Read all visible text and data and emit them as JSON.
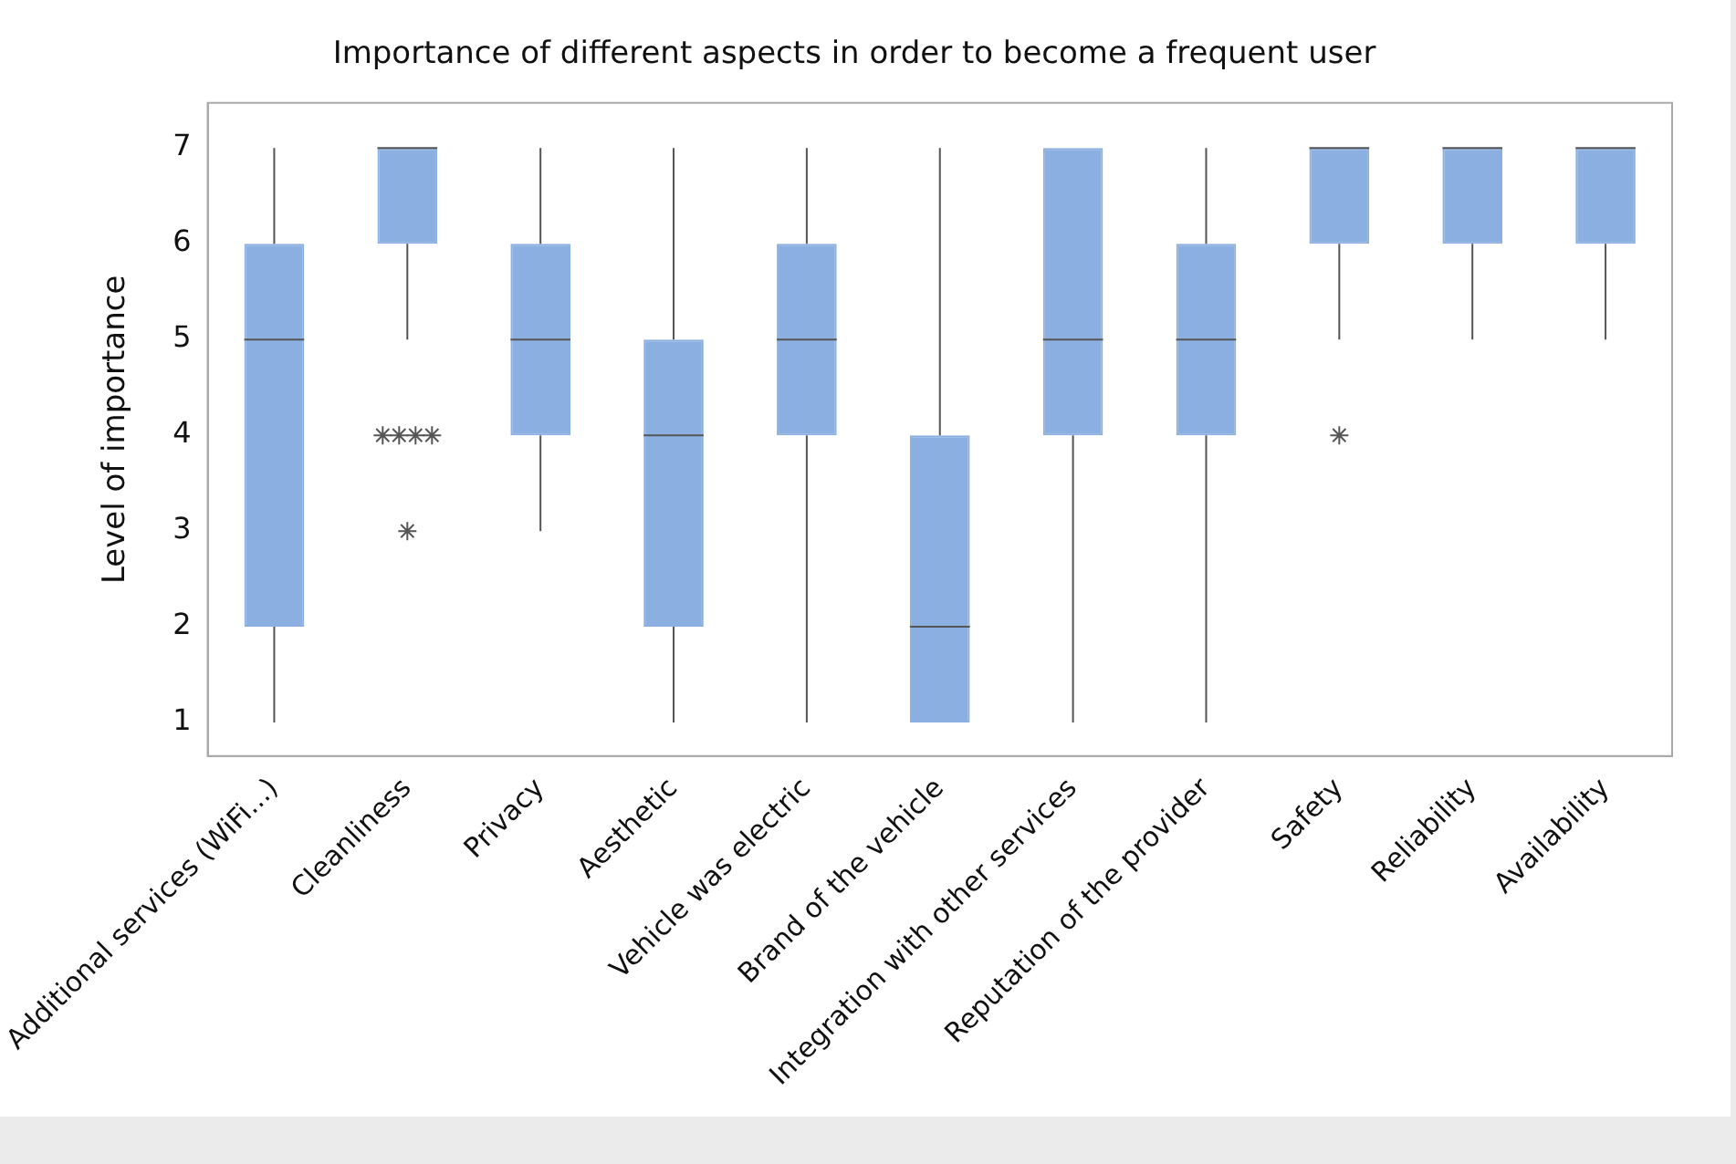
{
  "chart_data": {
    "type": "box",
    "title": "Importance of different aspects in order to become a frequent user",
    "ylabel": "Level of importance",
    "categories": [
      "Additional services (WiFi...)",
      "Cleanliness",
      "Privacy",
      "Aesthetic",
      "Vehicle was electric",
      "Brand of the vehicle",
      "Integration with other services",
      "Reputation of the provider",
      "Safety",
      "Reliability",
      "Availability"
    ],
    "boxes": [
      {
        "low": 1,
        "q1": 2,
        "median": 5,
        "q3": 6,
        "high": 7
      },
      {
        "low": 5,
        "q1": 6,
        "median": 7,
        "q3": 7,
        "high": 7,
        "outliers": [
          4,
          4,
          4,
          4,
          3
        ]
      },
      {
        "low": 3,
        "q1": 4,
        "median": 5,
        "q3": 6,
        "high": 7
      },
      {
        "low": 1,
        "q1": 2,
        "median": 4,
        "q3": 5,
        "high": 7
      },
      {
        "low": 1,
        "q1": 4,
        "median": 5,
        "q3": 6,
        "high": 7
      },
      {
        "low": 1,
        "q1": 1,
        "median": 2,
        "q3": 4,
        "high": 7
      },
      {
        "low": 1,
        "q1": 4,
        "median": 5,
        "q3": 7,
        "high": 7
      },
      {
        "low": 1,
        "q1": 4,
        "median": 5,
        "q3": 6,
        "high": 7
      },
      {
        "low": 5,
        "q1": 6,
        "median": 7,
        "q3": 7,
        "high": 7,
        "outliers": [
          4
        ]
      },
      {
        "low": 5,
        "q1": 6,
        "median": 7,
        "q3": 7,
        "high": 7
      },
      {
        "low": 5,
        "q1": 6,
        "median": 7,
        "q3": 7,
        "high": 7
      }
    ],
    "color": "#8aafe0",
    "ylim": [
      0.65,
      7.47
    ],
    "yticks": [
      1,
      2,
      3,
      4,
      5,
      6,
      7
    ],
    "grid": false,
    "legend": false,
    "marker": "star"
  }
}
